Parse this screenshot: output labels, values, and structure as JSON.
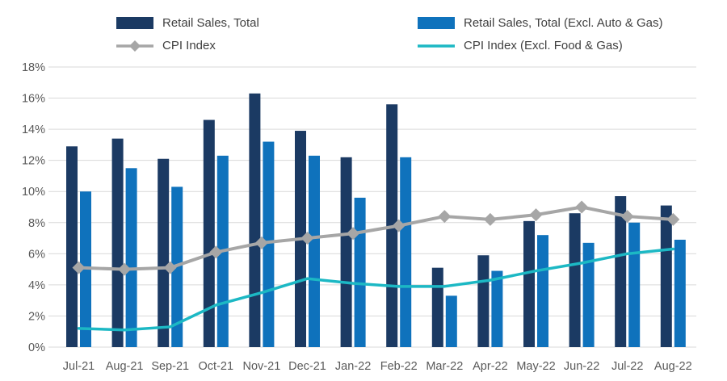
{
  "chart_data": {
    "type": "bar",
    "title": "",
    "categories": [
      "Jul-21",
      "Aug-21",
      "Sep-21",
      "Oct-21",
      "Nov-21",
      "Dec-21",
      "Jan-22",
      "Feb-22",
      "Mar-22",
      "Apr-22",
      "May-22",
      "Jun-22",
      "Jul-22",
      "Aug-22"
    ],
    "series": [
      {
        "name": "Retail Sales, Total",
        "type": "bar",
        "marker": "none",
        "color": "#1b3a63",
        "values": [
          12.9,
          13.4,
          12.1,
          14.6,
          16.3,
          13.9,
          12.2,
          15.6,
          5.1,
          5.9,
          8.1,
          8.6,
          9.7,
          9.1
        ]
      },
      {
        "name": "Retail Sales, Total (Excl. Auto & Gas)",
        "type": "bar",
        "marker": "none",
        "color": "#0f72bc",
        "values": [
          10.0,
          11.5,
          10.3,
          12.3,
          13.2,
          12.3,
          9.6,
          12.2,
          3.3,
          4.9,
          7.2,
          6.7,
          8.0,
          6.9
        ]
      },
      {
        "name": "CPI Index",
        "type": "line",
        "marker": "diamond",
        "color": "#a6a6a6",
        "values": [
          5.1,
          5.0,
          5.1,
          6.1,
          6.7,
          7.0,
          7.3,
          7.8,
          8.4,
          8.2,
          8.5,
          9.0,
          8.4,
          8.2
        ]
      },
      {
        "name": "CPI Index (Excl. Food & Gas)",
        "type": "line",
        "marker": "none",
        "color": "#1cb8c4",
        "values": [
          1.2,
          1.1,
          1.3,
          2.7,
          3.5,
          4.4,
          4.1,
          3.9,
          3.9,
          4.3,
          4.9,
          5.4,
          6.0,
          6.3
        ]
      }
    ],
    "xlabel": "",
    "ylabel": "",
    "ylim": [
      0,
      18
    ],
    "ytick_step": 2,
    "ytick_labels": [
      "0%",
      "2%",
      "4%",
      "6%",
      "8%",
      "10%",
      "12%",
      "14%",
      "16%",
      "18%"
    ],
    "grid": true,
    "legend_position": "top"
  },
  "style": {
    "grid_color": "#d9d9d9",
    "axis_text_color": "#595959",
    "legend_text_color": "#404040",
    "background": "#ffffff"
  }
}
